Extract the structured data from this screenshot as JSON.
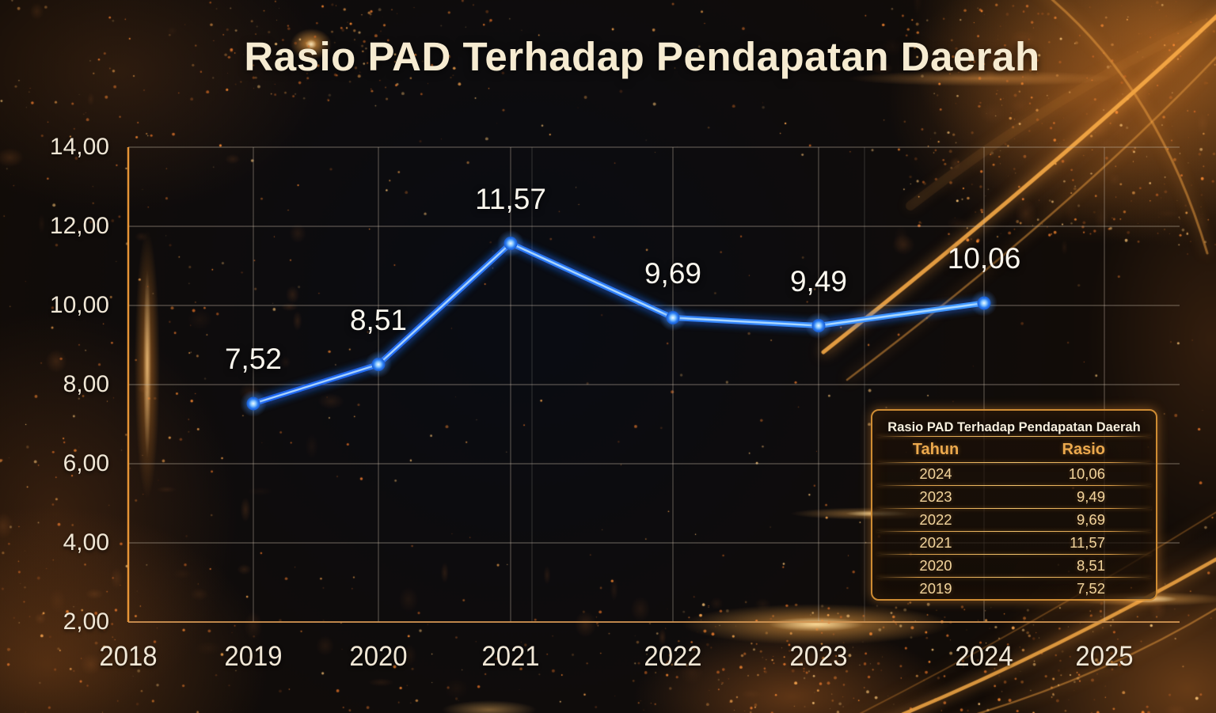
{
  "title": "Rasio PAD Terhadap Pendapatan Daerah",
  "chart_data": {
    "type": "line",
    "title": "Rasio PAD Terhadap Pendapatan Daerah",
    "x": [
      2019,
      2020,
      2021,
      2022,
      2023,
      2024
    ],
    "values": [
      7.52,
      8.51,
      11.57,
      9.69,
      9.49,
      10.06
    ],
    "point_labels": [
      "7,52",
      "8,51",
      "11,57",
      "9,69",
      "9,49",
      "10,06"
    ],
    "x_ticks": [
      "2018",
      "2019",
      "2020",
      "2021",
      "2022",
      "2023",
      "2024",
      "2025"
    ],
    "y_ticks": [
      "14,00",
      "12,00",
      "10,00",
      "8,00",
      "6,00",
      "4,00",
      "2,00"
    ],
    "ylim": [
      2,
      14
    ],
    "xlim": [
      2018,
      2025
    ],
    "y_step": 2,
    "grid": true,
    "legend": "none",
    "xlabel": "",
    "ylabel": "",
    "line_color": "#2e7bf6",
    "marker_color": "#9fd2ff"
  },
  "table": {
    "title": "Rasio PAD Terhadap Pendapatan Daerah",
    "columns": [
      "Tahun",
      "Rasio"
    ],
    "rows": [
      [
        "2024",
        "10,06"
      ],
      [
        "2023",
        "9,49"
      ],
      [
        "2022",
        "9,69"
      ],
      [
        "2021",
        "11,57"
      ],
      [
        "2020",
        "8,51"
      ],
      [
        "2019",
        "7,52"
      ]
    ]
  },
  "colors": {
    "accent_gold": "#e8a44c",
    "text_cream": "#f5ead6",
    "line_blue": "#2e7bf6",
    "table_text_gold": "#f2d49c",
    "grid_line": "#cdbeac"
  }
}
